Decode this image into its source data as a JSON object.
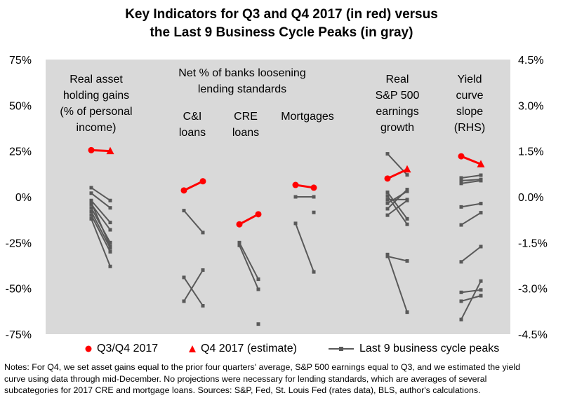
{
  "title": {
    "line1": "Key Indicators for Q3 and Q4 2017 (in red) versus",
    "line2": "the Last 9 Business Cycle Peaks (in gray)"
  },
  "chart_data": {
    "type": "line",
    "left_axis": {
      "ticks": [
        "75%",
        "50%",
        "25%",
        "0%",
        "-25%",
        "-50%",
        "-75%"
      ],
      "ylim": [
        -75,
        75
      ]
    },
    "right_axis": {
      "ticks": [
        "4.5%",
        "3.0%",
        "1.5%",
        "0.0%",
        "-1.5%",
        "-3.0%",
        "-4.5%"
      ],
      "ylim": [
        -4.5,
        4.5
      ]
    },
    "grid": false,
    "background": "#d9d9d9",
    "colors": {
      "current": "#ff0000",
      "peaks": "#595959"
    },
    "categories": [
      {
        "id": "asset",
        "label": [
          "Real asset",
          "holding gains",
          "(% of personal",
          "income)"
        ],
        "axis": "left",
        "current": [
          25.5,
          25.0
        ],
        "peaks": [
          [
            5,
            -2
          ],
          [
            2,
            -6
          ],
          [
            -2,
            -14
          ],
          [
            -4,
            -18
          ],
          [
            -6,
            -25
          ],
          [
            -8,
            -28
          ],
          [
            -10,
            -30
          ],
          [
            -12,
            -38
          ],
          [
            -3,
            -27
          ]
        ]
      },
      {
        "id": "ci",
        "label": [
          "C&I",
          "loans"
        ],
        "axis": "left",
        "current": [
          3.5,
          8.5
        ],
        "peaks": [
          [
            -7.5,
            -19.5
          ],
          [
            -44,
            -59.5
          ],
          [
            -57,
            -40
          ]
        ]
      },
      {
        "id": "cre",
        "label": [
          "CRE",
          "loans"
        ],
        "axis": "left",
        "current": [
          -15,
          -9.5
        ],
        "peaks": [
          [
            -25,
            -45
          ],
          [
            -26.5,
            -50.5
          ]
        ],
        "singles": [
          [
            1,
            -69.5
          ]
        ]
      },
      {
        "id": "mort",
        "label": [
          "Mortgages"
        ],
        "axis": "left",
        "current": [
          6.5,
          5.0
        ],
        "peaks": [
          [
            0,
            0
          ],
          [
            -14.5,
            -41
          ]
        ],
        "singles": [
          [
            1,
            -8.5
          ]
        ]
      },
      {
        "id": "sp",
        "label": [
          "Real",
          "S&P 500",
          "earnings",
          "growth"
        ],
        "axis": "left",
        "current": [
          10,
          15
        ],
        "peaks": [
          [
            23.5,
            12
          ],
          [
            2.5,
            -12
          ],
          [
            0.5,
            -15
          ],
          [
            -1.5,
            -1.5
          ],
          [
            -3.5,
            3
          ],
          [
            -6.5,
            4
          ],
          [
            -10,
            -2
          ],
          [
            -31.5,
            -63
          ],
          [
            -32.5,
            -35
          ]
        ]
      },
      {
        "id": "yield",
        "label": [
          "Yield",
          "curve",
          "slope",
          "(RHS)"
        ],
        "axis": "right",
        "current": [
          1.33,
          1.07
        ],
        "peaks": [
          [
            0.62,
            0.71
          ],
          [
            0.53,
            0.57
          ],
          [
            0.44,
            0.53
          ],
          [
            -0.33,
            -0.22
          ],
          [
            -0.92,
            -0.52
          ],
          [
            -2.13,
            -1.63
          ],
          [
            -3.13,
            -3.05
          ],
          [
            -3.42,
            -3.24
          ],
          [
            -4.02,
            -2.76
          ]
        ]
      }
    ],
    "group_label": [
      "Net % of banks loosening",
      "lending standards"
    ],
    "legend": [
      {
        "marker": "circle",
        "label": "Q3/Q4 2017"
      },
      {
        "marker": "triangle",
        "label": "Q4 2017 (estimate)"
      },
      {
        "marker": "square-line",
        "label": "Last 9 business cycle peaks"
      }
    ]
  },
  "notes": [
    "Notes: For Q4, we set asset gains equal to the prior four quarters' average, S&P 500 earnings equal to Q3, and we estimated the yield",
    "curve using data through mid-December. No projections were necessary for lending standards, which are averages of several",
    "subcategories for 2017 CRE and mortgage loans. Sources: S&P, Fed, St. Louis Fed (rates data), BLS, author's calculations."
  ]
}
